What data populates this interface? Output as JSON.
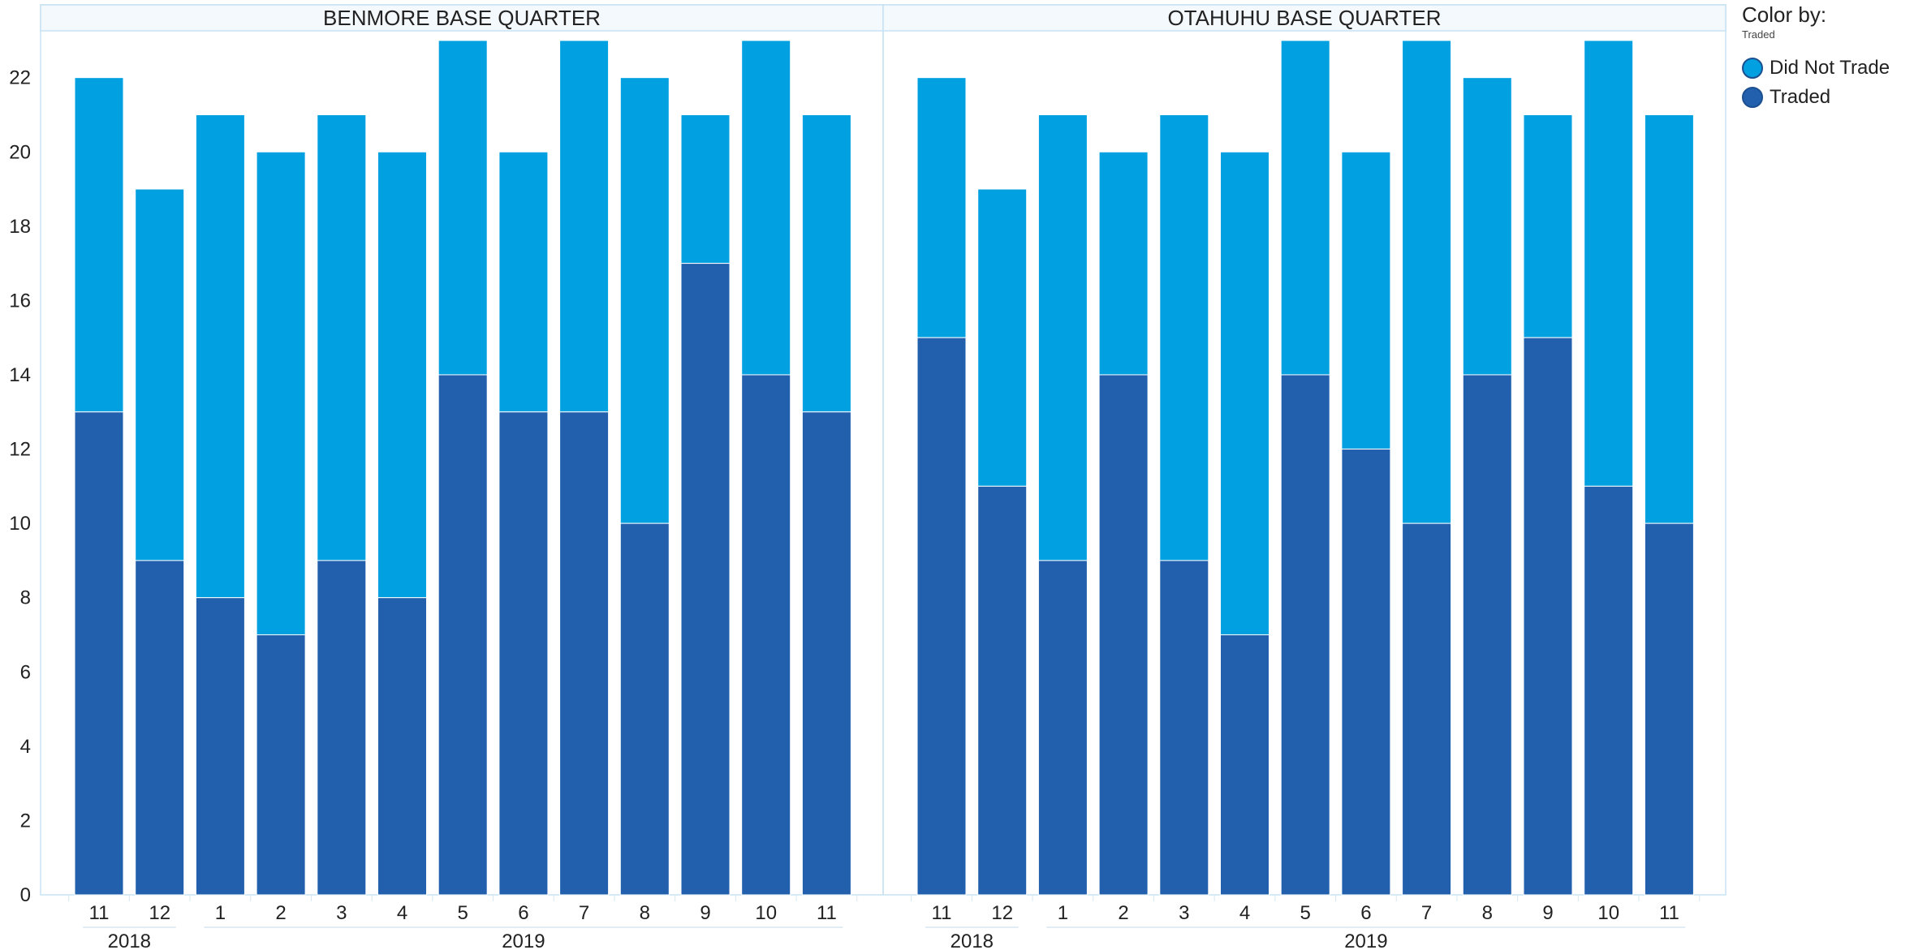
{
  "chart_data": {
    "type": "bar",
    "stacked": true,
    "ylim": [
      0,
      23.5
    ],
    "yticks": [
      0,
      2,
      4,
      6,
      8,
      10,
      12,
      14,
      16,
      18,
      20,
      22
    ],
    "categories": [
      "11",
      "12",
      "1",
      "2",
      "3",
      "4",
      "5",
      "6",
      "7",
      "8",
      "9",
      "10",
      "11"
    ],
    "year_groups": [
      {
        "label": "2018",
        "start": 0,
        "end": 1
      },
      {
        "label": "2019",
        "start": 2,
        "end": 12
      }
    ],
    "colors": {
      "Traded": "#2260ae",
      "Did Not Trade": "#00a0e1"
    },
    "panels": [
      {
        "title": "BENMORE BASE QUARTER",
        "series": [
          {
            "name": "Traded",
            "values": [
              13,
              9,
              8,
              7,
              9,
              8,
              14,
              13,
              13,
              10,
              17,
              14,
              13
            ]
          },
          {
            "name": "Did Not Trade",
            "values": [
              9,
              10,
              13,
              13,
              12,
              12,
              9,
              7,
              10,
              12,
              4,
              9,
              8
            ]
          }
        ]
      },
      {
        "title": "OTAHUHU BASE QUARTER",
        "series": [
          {
            "name": "Traded",
            "values": [
              15,
              11,
              9,
              14,
              9,
              7,
              14,
              12,
              10,
              14,
              15,
              11,
              10
            ]
          },
          {
            "name": "Did Not Trade",
            "values": [
              7,
              8,
              12,
              6,
              12,
              13,
              9,
              8,
              13,
              8,
              6,
              12,
              11
            ]
          }
        ]
      }
    ]
  },
  "legend": {
    "title": "Color by:",
    "subtitle": "Traded",
    "items": [
      {
        "label": "Did Not Trade",
        "color": "#00a0e1"
      },
      {
        "label": "Traded",
        "color": "#2260ae"
      }
    ]
  }
}
